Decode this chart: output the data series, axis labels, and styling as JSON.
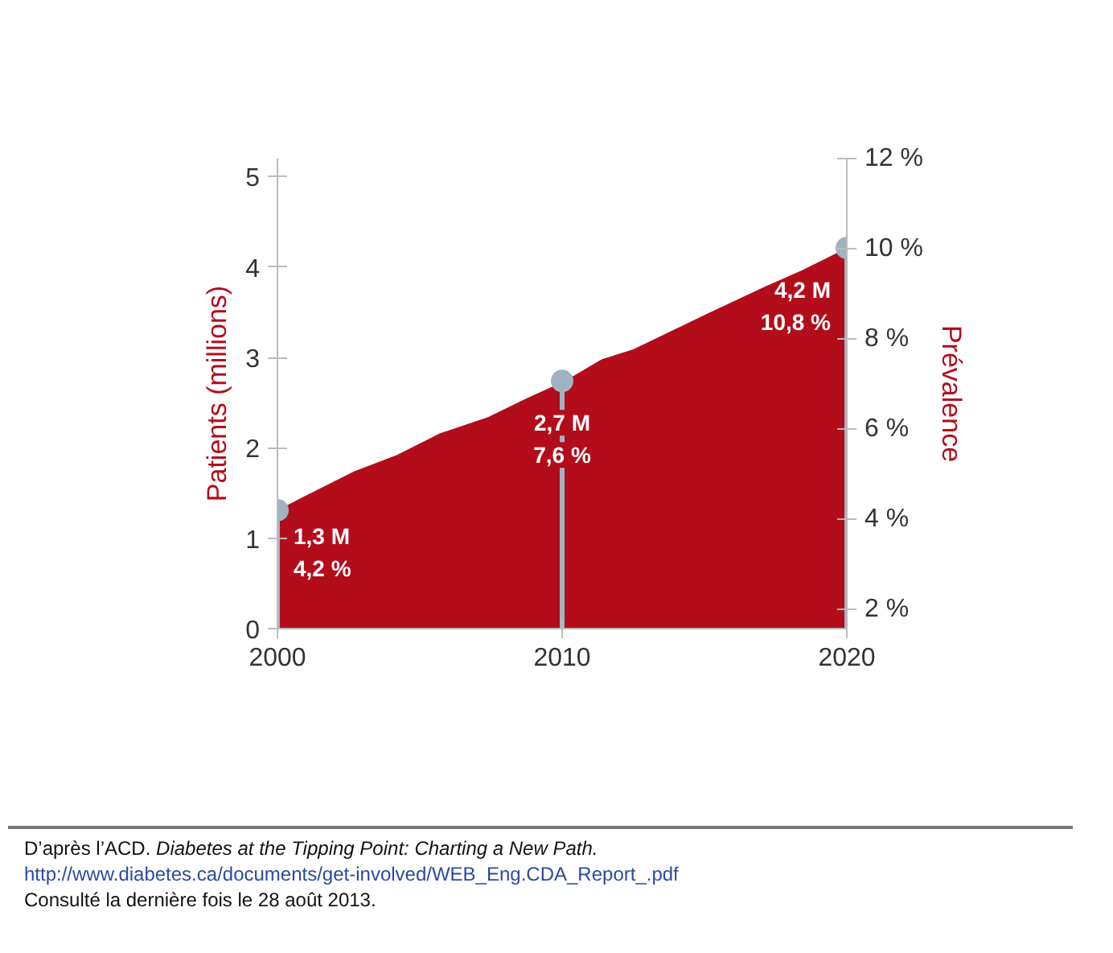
{
  "chart_data": {
    "type": "area",
    "ylabel": "Patients (millions)",
    "y2label": "Prévalence",
    "xlim": [
      2000,
      2020
    ],
    "xticks": [
      2000,
      2010,
      2020
    ],
    "ylim": [
      0,
      5.2
    ],
    "yticks": [
      0,
      1,
      2,
      3,
      4,
      5
    ],
    "y2lim": [
      1.57,
      12
    ],
    "y2ticks": [
      {
        "value": 2,
        "label": "2 %"
      },
      {
        "value": 4,
        "label": "4 %"
      },
      {
        "value": 6,
        "label": "6 %"
      },
      {
        "value": 8,
        "label": "8 %"
      },
      {
        "value": 10,
        "label": "10 %"
      },
      {
        "value": 12,
        "label": "12 %"
      }
    ],
    "grid": false,
    "series": [
      {
        "color": "#b30d1b",
        "x": [
          2000,
          2000.8,
          2002.7,
          2004.2,
          2005.7,
          2007.4,
          2008.7,
          2010.1,
          2011.4,
          2012.5,
          2015.2,
          2017.1,
          2018.4,
          2020
        ],
        "values": [
          1.31,
          1.44,
          1.74,
          1.92,
          2.16,
          2.34,
          2.54,
          2.74,
          2.98,
          3.09,
          3.5,
          3.78,
          3.96,
          4.21
        ]
      },
      {
        "type": "lollipop",
        "color": "#9fb3c1",
        "x": [
          2000,
          2010,
          2020
        ],
        "values": [
          1.31,
          2.74,
          4.21
        ]
      }
    ],
    "annotations": [
      {
        "text": "1,3 M\n4,2 %",
        "x": 2000,
        "y": 1.31
      },
      {
        "text": "2,7 M\n7,6 %",
        "x": 2010,
        "y": 2.74
      },
      {
        "text": "4,2 M\n10,8 %",
        "x": 2020,
        "y": 4.21
      },
      "D’après l’ACD.",
      "Diabetes at the Tipping Point: Charting a New Path.",
      "http://www.diabetes.ca/documents/get-involved/WEB_Eng.CDA_Report_.pdf",
      "Consulté la dernière fois le 28 août 2013."
    ]
  }
}
